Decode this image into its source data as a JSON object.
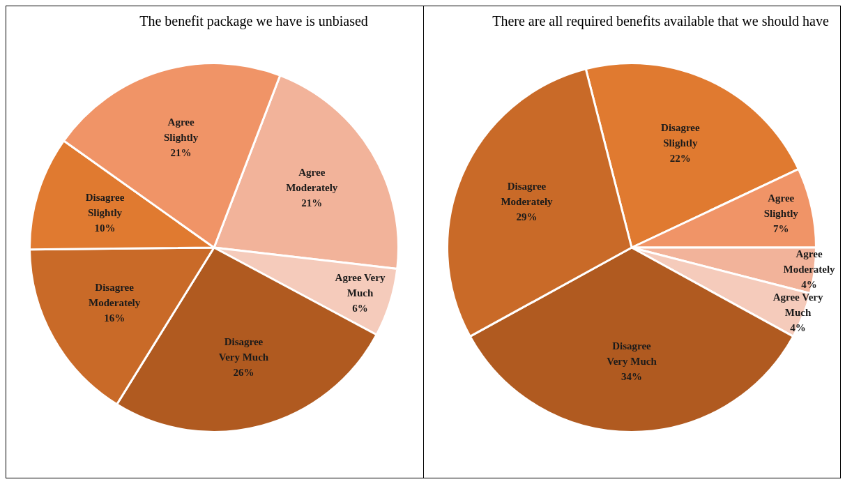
{
  "chart_data": [
    {
      "type": "pie",
      "title": "The benefit package we have is unbiased",
      "categories": [
        "Agree Moderately",
        "Agree Very Much",
        "Disagree Very Much",
        "Disagree Moderately",
        "Disagree Slightly",
        "Agree Slightly"
      ],
      "values": [
        21,
        6,
        26,
        16,
        10,
        21
      ],
      "value_labels": [
        "21%",
        "6%",
        "26%",
        "16%",
        "10%",
        "21%"
      ],
      "colors": [
        "#f2b39a",
        "#f5cbbb",
        "#b05a20",
        "#c96a28",
        "#e07a30",
        "#f09467"
      ],
      "legend": false
    },
    {
      "type": "pie",
      "title": "There are all required benefits available that we should have",
      "categories": [
        "Disagree Slightly",
        "Agree Slightly",
        "Agree Moderately",
        "Agree Very Much",
        "Disagree Very Much",
        "Disagree Moderately"
      ],
      "values": [
        22,
        7,
        4,
        4,
        34,
        29
      ],
      "value_labels": [
        "22%",
        "7%",
        "4%",
        "4%",
        "34%",
        "29%"
      ],
      "colors": [
        "#e07a30",
        "#f09467",
        "#f2b39a",
        "#f5cbbb",
        "#b05a20",
        "#c96a28"
      ],
      "legend": false
    }
  ]
}
